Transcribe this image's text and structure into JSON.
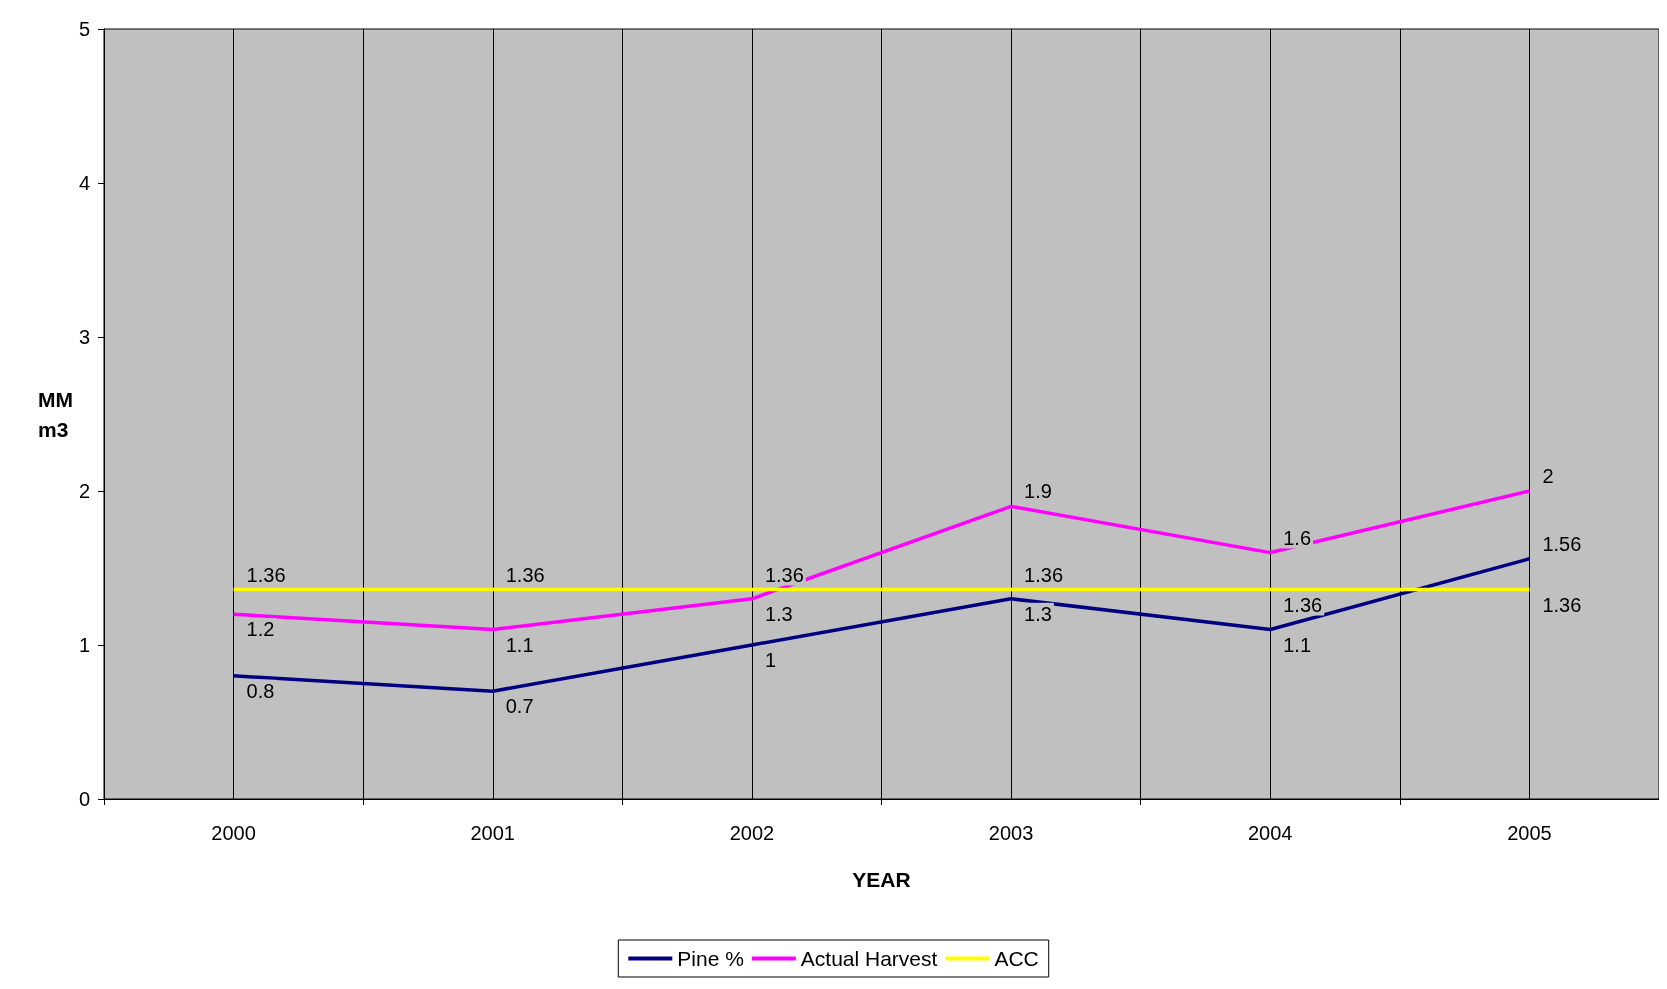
{
  "chart_data": {
    "type": "line",
    "xlabel": "YEAR",
    "ylabel": "MM m3",
    "categories": [
      "2000",
      "2001",
      "2002",
      "2003",
      "2004",
      "2005"
    ],
    "series": [
      {
        "name": "Pine %",
        "color": "#000080",
        "values": [
          0.8,
          0.7,
          1,
          1.3,
          1.1,
          1.56
        ]
      },
      {
        "name": "Actual Harvest",
        "color": "#ff00ff",
        "values": [
          1.2,
          1.1,
          1.3,
          1.9,
          1.6,
          2
        ]
      },
      {
        "name": "ACC",
        "color": "#ffff00",
        "values": [
          1.36,
          1.36,
          1.36,
          1.36,
          1.36,
          1.36
        ]
      }
    ],
    "ylim": [
      0,
      5
    ],
    "yticks": [
      0,
      1,
      2,
      3,
      4,
      5
    ],
    "grid": "x",
    "legend": "bottom",
    "data_labels": true,
    "marker": "none",
    "line_style": "solid"
  }
}
